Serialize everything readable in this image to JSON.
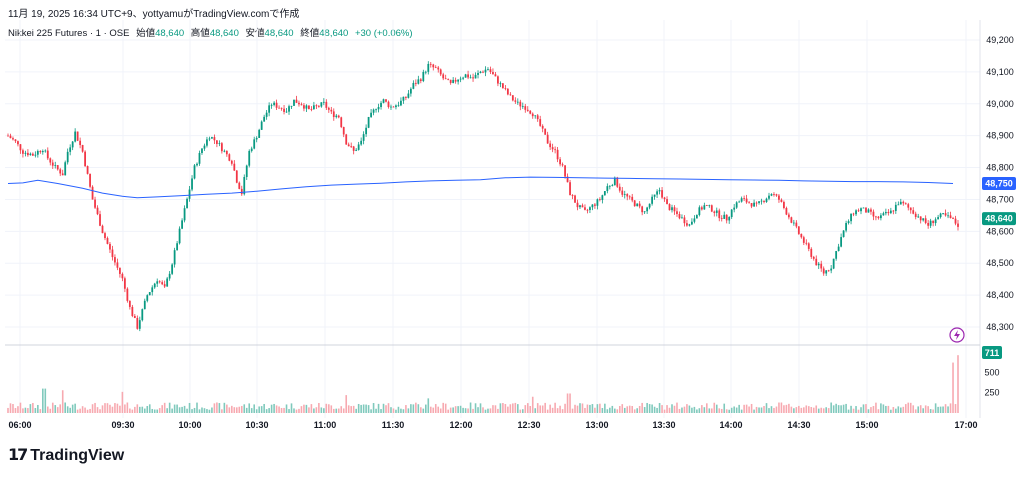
{
  "header": {
    "published": "11月 19, 2025 16:34 UTC+9、yottyamuがTradingView.comで作成",
    "symbol": "Nikkei 225 Futures · 1 · OSE",
    "open_label": "始値",
    "open": "48,640",
    "high_label": "高値",
    "high": "48,640",
    "low_label": "安値",
    "low": "48,640",
    "close_label": "終値",
    "close": "48,640",
    "change": "+30 (+0.06%)"
  },
  "colors": {
    "up": "#089981",
    "down": "#f23645",
    "ma": "#2962ff",
    "up_vol": "#7fc9bc",
    "down_vol": "#f7a9b0"
  },
  "price_badges": {
    "ma": "48,750",
    "last": "48,640"
  },
  "volume_badge": "711",
  "footer": {
    "brand": "TradingView"
  },
  "chart_data": [
    {
      "type": "candlestick",
      "y_ticks": [
        "49,200",
        "49,100",
        "49,000",
        "48,900",
        "48,800",
        "48,700",
        "48,600",
        "48,500",
        "48,400",
        "48,300"
      ],
      "ylim": [
        48250,
        49250
      ],
      "x_ticks": [
        "06:00",
        "09:30",
        "10:00",
        "10:30",
        "11:00",
        "11:30",
        "12:00",
        "12:30",
        "13:00",
        "13:30",
        "14:00",
        "14:30",
        "15:00",
        "17:00"
      ],
      "anchors": [
        [
          0,
          48900
        ],
        [
          3,
          48880
        ],
        [
          6,
          48850
        ],
        [
          10,
          48840
        ],
        [
          14,
          48860
        ],
        [
          16,
          48830
        ],
        [
          19,
          48800
        ],
        [
          22,
          48780
        ],
        [
          24,
          48850
        ],
        [
          27,
          48910
        ],
        [
          30,
          48850
        ],
        [
          34,
          48700
        ],
        [
          38,
          48600
        ],
        [
          42,
          48520
        ],
        [
          46,
          48450
        ],
        [
          49,
          48360
        ],
        [
          52,
          48300
        ],
        [
          56,
          48400
        ],
        [
          60,
          48450
        ],
        [
          63,
          48420
        ],
        [
          66,
          48500
        ],
        [
          69,
          48600
        ],
        [
          72,
          48700
        ],
        [
          75,
          48800
        ],
        [
          78,
          48860
        ],
        [
          81,
          48900
        ],
        [
          84,
          48880
        ],
        [
          87,
          48850
        ],
        [
          90,
          48820
        ],
        [
          92,
          48760
        ],
        [
          94,
          48720
        ],
        [
          97,
          48850
        ],
        [
          100,
          48900
        ],
        [
          103,
          48960
        ],
        [
          106,
          49000
        ],
        [
          109,
          48990
        ],
        [
          112,
          48980
        ],
        [
          115,
          49010
        ],
        [
          118,
          49000
        ],
        [
          121,
          48980
        ],
        [
          124,
          48990
        ],
        [
          127,
          49000
        ],
        [
          130,
          48970
        ],
        [
          133,
          48960
        ],
        [
          136,
          48880
        ],
        [
          139,
          48850
        ],
        [
          142,
          48880
        ],
        [
          145,
          48950
        ],
        [
          148,
          48990
        ],
        [
          151,
          49010
        ],
        [
          154,
          48990
        ],
        [
          157,
          49000
        ],
        [
          160,
          49020
        ],
        [
          163,
          49060
        ],
        [
          166,
          49080
        ],
        [
          169,
          49120
        ],
        [
          172,
          49110
        ],
        [
          175,
          49080
        ],
        [
          178,
          49060
        ],
        [
          181,
          49080
        ],
        [
          184,
          49090
        ],
        [
          187,
          49080
        ],
        [
          190,
          49100
        ],
        [
          193,
          49110
        ],
        [
          196,
          49080
        ],
        [
          199,
          49050
        ],
        [
          202,
          49020
        ],
        [
          205,
          49000
        ],
        [
          208,
          48990
        ],
        [
          211,
          48970
        ],
        [
          214,
          48930
        ],
        [
          217,
          48880
        ],
        [
          220,
          48850
        ],
        [
          223,
          48800
        ],
        [
          226,
          48720
        ],
        [
          229,
          48680
        ],
        [
          232,
          48660
        ],
        [
          235,
          48680
        ],
        [
          238,
          48700
        ],
        [
          241,
          48740
        ],
        [
          244,
          48760
        ],
        [
          247,
          48720
        ],
        [
          250,
          48700
        ],
        [
          253,
          48680
        ],
        [
          256,
          48660
        ],
        [
          259,
          48700
        ],
        [
          262,
          48730
        ],
        [
          265,
          48680
        ],
        [
          268,
          48660
        ],
        [
          271,
          48640
        ],
        [
          274,
          48620
        ],
        [
          277,
          48660
        ],
        [
          280,
          48680
        ],
        [
          283,
          48670
        ],
        [
          286,
          48650
        ],
        [
          289,
          48640
        ],
        [
          292,
          48680
        ],
        [
          295,
          48700
        ],
        [
          298,
          48690
        ],
        [
          301,
          48680
        ],
        [
          304,
          48700
        ],
        [
          307,
          48720
        ],
        [
          310,
          48700
        ],
        [
          313,
          48660
        ],
        [
          316,
          48620
        ],
        [
          319,
          48580
        ],
        [
          322,
          48540
        ],
        [
          325,
          48500
        ],
        [
          328,
          48470
        ],
        [
          331,
          48490
        ],
        [
          334,
          48560
        ],
        [
          337,
          48620
        ],
        [
          340,
          48660
        ],
        [
          343,
          48670
        ],
        [
          346,
          48660
        ],
        [
          349,
          48640
        ],
        [
          352,
          48650
        ],
        [
          355,
          48660
        ],
        [
          358,
          48690
        ],
        [
          361,
          48680
        ],
        [
          364,
          48660
        ],
        [
          367,
          48640
        ],
        [
          370,
          48620
        ],
        [
          373,
          48640
        ],
        [
          376,
          48650
        ],
        [
          379,
          48640
        ],
        [
          382,
          48620
        ]
      ],
      "volume_y_ticks": [
        "500",
        "250"
      ],
      "volume_max": 750,
      "ma_series": [
        [
          0,
          48750
        ],
        [
          6,
          48752
        ],
        [
          12,
          48760
        ],
        [
          20,
          48750
        ],
        [
          30,
          48735
        ],
        [
          38,
          48720
        ],
        [
          46,
          48710
        ],
        [
          52,
          48705
        ],
        [
          60,
          48708
        ],
        [
          70,
          48712
        ],
        [
          80,
          48716
        ],
        [
          90,
          48720
        ],
        [
          100,
          48726
        ],
        [
          110,
          48733
        ],
        [
          120,
          48740
        ],
        [
          130,
          48745
        ],
        [
          140,
          48748
        ],
        [
          150,
          48751
        ],
        [
          160,
          48755
        ],
        [
          170,
          48758
        ],
        [
          180,
          48760
        ],
        [
          190,
          48762
        ],
        [
          200,
          48768
        ],
        [
          210,
          48770
        ],
        [
          220,
          48769
        ],
        [
          230,
          48768
        ],
        [
          240,
          48767
        ],
        [
          250,
          48766
        ],
        [
          260,
          48765
        ],
        [
          270,
          48764
        ],
        [
          280,
          48763
        ],
        [
          290,
          48762
        ],
        [
          300,
          48761
        ],
        [
          310,
          48760
        ],
        [
          320,
          48758
        ],
        [
          330,
          48757
        ],
        [
          340,
          48756
        ],
        [
          350,
          48756
        ],
        [
          360,
          48755
        ],
        [
          370,
          48753
        ],
        [
          380,
          48750
        ]
      ]
    }
  ]
}
